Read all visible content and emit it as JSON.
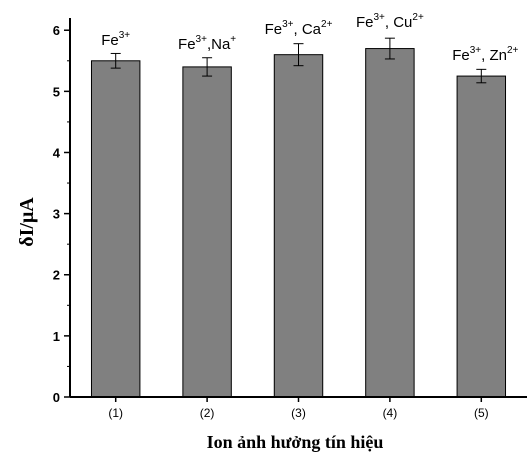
{
  "chart_data": {
    "type": "bar",
    "categories": [
      "(1)",
      "(2)",
      "(3)",
      "(4)",
      "(5)"
    ],
    "values": [
      5.5,
      5.4,
      5.6,
      5.7,
      5.25
    ],
    "errors": [
      0.12,
      0.15,
      0.18,
      0.17,
      0.11
    ],
    "bar_labels": [
      [
        {
          "t": "Fe"
        },
        {
          "t": "3+",
          "sup": true
        }
      ],
      [
        {
          "t": "Fe"
        },
        {
          "t": "3+",
          "sup": true
        },
        {
          "t": ",Na"
        },
        {
          "t": "+",
          "sup": true
        }
      ],
      [
        {
          "t": "Fe"
        },
        {
          "t": "3+",
          "sup": true
        },
        {
          "t": ", Ca"
        },
        {
          "t": "2+",
          "sup": true
        }
      ],
      [
        {
          "t": "Fe"
        },
        {
          "t": "3+",
          "sup": true
        },
        {
          "t": ", Cu"
        },
        {
          "t": "2+",
          "sup": true
        }
      ],
      [
        {
          "t": "Fe"
        },
        {
          "t": "3+",
          "sup": true
        },
        {
          "t": ", Zn"
        },
        {
          "t": "2+",
          "sup": true
        }
      ]
    ],
    "xlabel": "Ion ảnh hưởng tín hiệu",
    "ylabel": "δI/μA",
    "ylim": [
      0,
      6.2
    ],
    "yticks": [
      0,
      1,
      2,
      3,
      4,
      5,
      6
    ],
    "bar_color": "#808080",
    "grid": false
  }
}
